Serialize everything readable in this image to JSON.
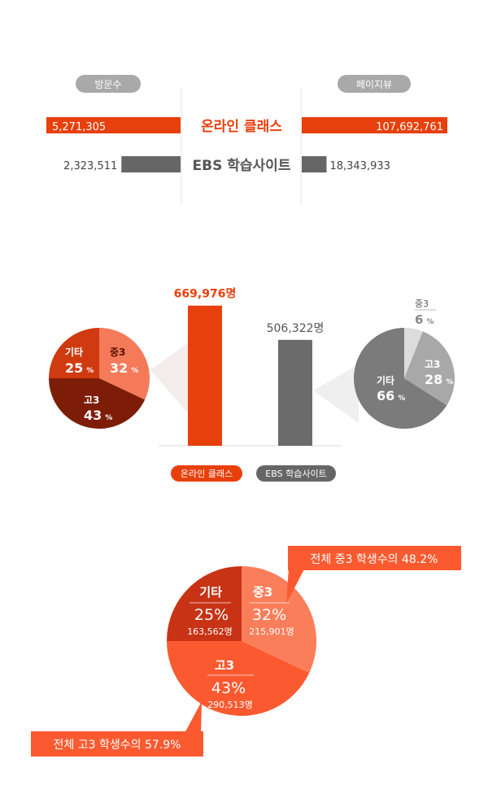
{
  "chart_data": [
    {
      "type": "bar",
      "title": "",
      "left_header": "방문수",
      "right_header": "페이지뷰",
      "categories": [
        "온라인 클래스",
        "EBS 학습사이트"
      ],
      "series": [
        {
          "name": "방문수",
          "values": [
            5271305,
            2323511
          ],
          "labels": [
            "5,271,305",
            "2,323,511"
          ]
        },
        {
          "name": "페이지뷰",
          "values": [
            107692761,
            18343933
          ],
          "labels": [
            "107,692,761",
            "18,343,933"
          ]
        }
      ],
      "colors": {
        "online": "#e8400c",
        "ebs": "#666666",
        "header": "#a9a9a9"
      }
    },
    {
      "type": "bar",
      "categories": [
        "온라인 클래스",
        "EBS 학습사이트"
      ],
      "values": [
        669976,
        506322
      ],
      "labels": [
        "669,976명",
        "506,322명"
      ],
      "legend": [
        "온라인 클래스",
        "EBS 학습사이트"
      ],
      "ylim": [
        0,
        700000
      ],
      "colors": [
        "#e8400c",
        "#6b6b6b"
      ]
    },
    {
      "type": "pie",
      "group": "온라인 클래스",
      "labels": [
        "중3",
        "고3",
        "기타"
      ],
      "values": [
        32,
        43,
        25
      ],
      "colors": [
        "#f47a5a",
        "#7e1d07",
        "#d03a10"
      ]
    },
    {
      "type": "pie",
      "group": "EBS 학습사이트",
      "labels": [
        "중3",
        "고3",
        "기타"
      ],
      "values": [
        6,
        28,
        66
      ],
      "colors": [
        "#dcdcdc",
        "#a8a8a8",
        "#7b7b7b"
      ]
    },
    {
      "type": "pie",
      "labels": [
        "중3",
        "고3",
        "기타"
      ],
      "values": [
        32,
        43,
        25
      ],
      "counts": [
        "215,901명",
        "290,513명",
        "163,562명"
      ],
      "colors": [
        "#fb7e5a",
        "#fb5a30",
        "#c83315"
      ],
      "annotations": [
        "전체 중3 학생수의 48.2%",
        "전체 고3 학생수의 57.9%"
      ]
    }
  ],
  "pct_unit": "%"
}
